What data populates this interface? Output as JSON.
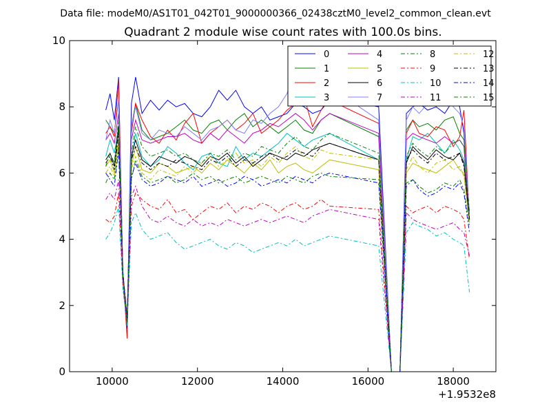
{
  "chart_data": {
    "type": "line",
    "suptitle": "Data file: modeM0/AS1T01_042T01_9000000366_02438cztM0_level2_common_clean.evt",
    "title": "Quadrant 2 module wise count rates with 100.0s bins.",
    "xlabel": "",
    "ylabel": "",
    "xlim": [
      9000,
      19000
    ],
    "ylim": [
      0,
      10
    ],
    "x_offset_label": "+1.9532e8",
    "xticks": [
      10000,
      12000,
      14000,
      16000,
      18000
    ],
    "yticks": [
      0,
      2,
      4,
      6,
      8,
      10
    ],
    "xtick_labels": [
      "10000",
      "12000",
      "14000",
      "16000",
      "18000"
    ],
    "ytick_labels": [
      "0",
      "2",
      "4",
      "6",
      "8",
      "10"
    ],
    "grid": false,
    "legend_position": "top-right",
    "legend_columns": 4,
    "series": [
      {
        "name": "0",
        "color": "#0000ff",
        "dash": "solid",
        "values": [
          7.9,
          8.4,
          7.6,
          8.9,
          3.0,
          1.3,
          8.1,
          8.9,
          7.8,
          8.2,
          7.9,
          8.2,
          8.0,
          8.1,
          7.8,
          7.7,
          8.0,
          8.5,
          8.2,
          8.5,
          8.0,
          7.8,
          8.0,
          7.6,
          7.7,
          7.8,
          8.1,
          8.0,
          7.8,
          7.9,
          8.3,
          8.0,
          0.0,
          0.0,
          7.8,
          8.0,
          8.1,
          7.9,
          8.0,
          7.8,
          8.2,
          8.0,
          7.2,
          4.6
        ]
      },
      {
        "name": "1",
        "color": "#008000",
        "dash": "solid",
        "values": [
          7.6,
          7.4,
          7.2,
          8.2,
          3.0,
          1.5,
          7.4,
          8.1,
          7.3,
          7.0,
          7.1,
          7.2,
          7.4,
          7.6,
          7.3,
          7.2,
          7.5,
          7.6,
          7.3,
          7.6,
          7.8,
          7.4,
          7.6,
          7.4,
          7.2,
          7.4,
          7.6,
          7.3,
          7.2,
          7.6,
          7.8,
          7.1,
          0.0,
          0.0,
          7.3,
          7.6,
          7.4,
          7.5,
          7.3,
          7.6,
          7.7,
          7.2,
          7.0,
          4.8
        ]
      },
      {
        "name": "2",
        "color": "#ff0000",
        "dash": "solid",
        "values": [
          7.2,
          7.4,
          7.1,
          8.8,
          3.0,
          1.0,
          7.2,
          8.1,
          7.6,
          7.1,
          6.9,
          7.3,
          7.0,
          7.5,
          7.8,
          6.9,
          7.2,
          7.4,
          7.6,
          7.3,
          7.5,
          7.8,
          7.2,
          7.4,
          7.6,
          7.9,
          8.1,
          8.3,
          7.4,
          7.9,
          8.2,
          7.5,
          0.0,
          0.0,
          7.2,
          7.6,
          7.2,
          7.1,
          7.4,
          7.3,
          6.8,
          7.1,
          7.9,
          4.6
        ]
      },
      {
        "name": "3",
        "color": "#00bfbf",
        "dash": "solid",
        "values": [
          6.5,
          7.0,
          6.6,
          7.4,
          3.0,
          1.4,
          6.4,
          7.2,
          6.5,
          6.2,
          6.4,
          6.8,
          6.6,
          6.3,
          6.1,
          6.5,
          6.6,
          6.3,
          6.2,
          6.8,
          6.4,
          6.6,
          6.5,
          6.7,
          6.9,
          7.2,
          7.0,
          6.8,
          7.0,
          7.1,
          7.2,
          6.4,
          0.0,
          0.0,
          6.4,
          7.1,
          7.0,
          7.2,
          6.9,
          6.6,
          7.0,
          6.7,
          6.4,
          4.5
        ]
      },
      {
        "name": "4",
        "color": "#bf00bf",
        "dash": "solid",
        "values": [
          7.0,
          7.2,
          6.9,
          7.8,
          3.0,
          1.6,
          7.0,
          7.6,
          7.0,
          6.9,
          7.0,
          7.1,
          7.1,
          7.2,
          7.0,
          6.9,
          7.2,
          7.0,
          7.3,
          7.1,
          6.9,
          7.2,
          7.3,
          7.5,
          7.4,
          7.6,
          7.8,
          7.6,
          7.3,
          7.6,
          7.8,
          7.2,
          0.0,
          0.0,
          7.0,
          7.2,
          7.1,
          7.0,
          6.9,
          7.1,
          6.9,
          7.0,
          6.8,
          4.6
        ]
      },
      {
        "name": "5",
        "color": "#bfbf00",
        "dash": "solid",
        "values": [
          6.2,
          6.4,
          6.0,
          7.0,
          3.0,
          1.5,
          6.2,
          6.8,
          6.1,
          6.0,
          6.3,
          6.2,
          6.0,
          6.1,
          6.2,
          6.0,
          6.3,
          6.1,
          6.4,
          6.2,
          6.0,
          6.3,
          6.1,
          6.4,
          6.0,
          6.2,
          6.3,
          6.1,
          6.0,
          6.2,
          6.4,
          6.1,
          0.0,
          0.0,
          6.0,
          6.3,
          6.2,
          6.1,
          6.0,
          6.2,
          6.4,
          6.1,
          6.0,
          4.5
        ]
      },
      {
        "name": "6",
        "color": "#000000",
        "dash": "solid",
        "values": [
          6.4,
          6.6,
          6.2,
          7.4,
          3.0,
          1.6,
          6.5,
          7.0,
          6.4,
          6.2,
          6.5,
          6.4,
          6.3,
          6.5,
          6.4,
          6.2,
          6.5,
          6.4,
          6.6,
          6.3,
          6.5,
          6.2,
          6.4,
          6.6,
          6.5,
          6.4,
          6.6,
          6.5,
          6.7,
          6.8,
          6.9,
          6.4,
          0.0,
          0.0,
          6.3,
          6.8,
          6.6,
          6.4,
          6.7,
          6.5,
          6.4,
          6.6,
          6.3,
          4.6
        ]
      },
      {
        "name": "7",
        "color": "#7f7fff",
        "dash": "solid",
        "values": [
          7.0,
          7.6,
          7.2,
          8.2,
          3.0,
          1.5,
          7.4,
          8.0,
          7.2,
          7.0,
          7.3,
          7.2,
          7.1,
          7.4,
          7.2,
          7.0,
          7.3,
          7.4,
          7.6,
          7.3,
          7.2,
          7.6,
          7.5,
          7.8,
          8.0,
          8.4,
          9.2,
          8.6,
          8.2,
          8.4,
          8.6,
          7.6,
          0.0,
          0.0,
          7.6,
          8.0,
          7.8,
          8.1,
          8.2,
          8.6,
          8.0,
          7.8,
          7.4,
          4.7
        ]
      },
      {
        "name": "8",
        "color": "#008000",
        "dash": "dashdot",
        "values": [
          5.7,
          6.0,
          5.8,
          6.8,
          2.8,
          1.5,
          5.8,
          6.4,
          5.9,
          5.7,
          5.8,
          5.9,
          5.7,
          5.8,
          6.0,
          5.8,
          5.9,
          5.7,
          5.8,
          5.9,
          5.7,
          5.8,
          5.9,
          5.8,
          5.7,
          5.9,
          5.8,
          5.7,
          5.9,
          6.0,
          5.9,
          5.8,
          0.0,
          0.0,
          5.7,
          5.8,
          5.6,
          5.4,
          5.5,
          5.7,
          5.6,
          5.8,
          5.5,
          4.4
        ]
      },
      {
        "name": "9",
        "color": "#ff0000",
        "dash": "dashdot",
        "values": [
          4.6,
          4.5,
          4.7,
          5.4,
          2.6,
          1.4,
          5.0,
          5.4,
          5.2,
          5.0,
          4.9,
          5.2,
          4.8,
          4.9,
          4.6,
          4.8,
          5.0,
          4.9,
          5.1,
          4.8,
          5.0,
          4.9,
          5.1,
          5.0,
          4.8,
          5.0,
          5.1,
          4.9,
          5.0,
          5.2,
          5.0,
          4.9,
          0.0,
          0.0,
          5.0,
          4.8,
          4.9,
          5.0,
          4.8,
          5.0,
          4.9,
          4.8,
          4.6,
          3.4
        ]
      },
      {
        "name": "10",
        "color": "#00bfbf",
        "dash": "dashdot",
        "values": [
          4.0,
          4.2,
          4.5,
          5.0,
          2.5,
          1.4,
          4.5,
          4.8,
          4.3,
          4.0,
          4.1,
          4.2,
          3.9,
          3.7,
          3.8,
          3.9,
          4.0,
          3.8,
          3.7,
          3.9,
          3.8,
          3.6,
          3.7,
          3.8,
          3.9,
          3.8,
          4.0,
          3.8,
          3.9,
          4.0,
          4.1,
          3.8,
          0.0,
          0.0,
          4.2,
          4.5,
          4.4,
          4.3,
          4.1,
          4.2,
          4.0,
          3.9,
          3.8,
          2.4
        ]
      },
      {
        "name": "11",
        "color": "#bf00bf",
        "dash": "dashdot",
        "values": [
          5.2,
          5.4,
          5.2,
          5.8,
          2.8,
          1.5,
          5.3,
          5.6,
          5.0,
          4.6,
          4.5,
          4.7,
          4.5,
          4.4,
          4.6,
          4.4,
          4.5,
          4.4,
          4.6,
          4.5,
          4.4,
          4.5,
          4.6,
          4.5,
          4.6,
          4.7,
          4.6,
          4.5,
          4.7,
          4.8,
          4.9,
          4.6,
          0.0,
          0.0,
          4.8,
          4.6,
          4.5,
          4.4,
          4.3,
          4.4,
          4.5,
          4.3,
          4.2,
          3.5
        ]
      },
      {
        "name": "12",
        "color": "#bfbf00",
        "dash": "dashdot",
        "values": [
          6.0,
          6.2,
          5.9,
          6.9,
          2.9,
          1.5,
          6.1,
          6.5,
          6.0,
          5.8,
          6.1,
          6.0,
          5.9,
          6.2,
          6.0,
          6.3,
          6.5,
          6.2,
          6.4,
          6.6,
          6.3,
          6.4,
          6.2,
          6.5,
          6.3,
          6.6,
          6.8,
          6.5,
          6.4,
          6.7,
          6.6,
          6.4,
          0.0,
          0.0,
          6.1,
          6.5,
          6.2,
          6.0,
          6.3,
          6.4,
          6.1,
          6.2,
          5.9,
          4.5
        ]
      },
      {
        "name": "13",
        "color": "#000000",
        "dash": "dashdot",
        "values": [
          6.3,
          6.5,
          6.1,
          7.2,
          3.0,
          1.6,
          6.4,
          6.8,
          6.3,
          6.1,
          6.3,
          6.2,
          6.4,
          6.3,
          6.2,
          6.1,
          6.4,
          6.3,
          6.5,
          6.2,
          6.4,
          6.3,
          6.5,
          6.6,
          6.4,
          6.5,
          6.7,
          6.6,
          6.5,
          6.8,
          6.9,
          6.4,
          0.0,
          0.0,
          6.4,
          6.7,
          6.5,
          6.3,
          6.6,
          6.4,
          6.5,
          6.6,
          6.2,
          4.6
        ]
      },
      {
        "name": "14",
        "color": "#0000ff",
        "dash": "dashdot",
        "values": [
          6.0,
          5.8,
          5.6,
          6.7,
          2.9,
          1.5,
          5.9,
          6.3,
          5.8,
          5.6,
          5.7,
          5.9,
          5.8,
          5.7,
          5.9,
          5.6,
          5.7,
          5.8,
          5.6,
          5.7,
          5.9,
          5.8,
          5.6,
          5.7,
          5.8,
          5.7,
          5.9,
          5.8,
          5.7,
          5.9,
          6.0,
          5.7,
          0.0,
          0.0,
          5.6,
          5.8,
          5.5,
          5.3,
          5.4,
          5.6,
          5.5,
          5.7,
          5.4,
          4.2
        ]
      },
      {
        "name": "15",
        "color": "#008000",
        "dash": "dashdot",
        "values": [
          6.2,
          6.6,
          6.3,
          7.6,
          2.9,
          1.5,
          6.6,
          7.4,
          6.8,
          6.5,
          6.6,
          6.7,
          6.5,
          6.6,
          6.4,
          6.3,
          6.6,
          6.5,
          6.7,
          6.4,
          6.6,
          6.5,
          6.8,
          6.7,
          6.6,
          6.9,
          7.1,
          6.8,
          6.7,
          7.0,
          7.2,
          6.6,
          0.0,
          0.0,
          6.5,
          6.9,
          6.7,
          6.5,
          6.8,
          6.6,
          6.9,
          7.0,
          6.8,
          4.8
        ]
      }
    ],
    "x": [
      9850,
      9950,
      10050,
      10150,
      10250,
      10350,
      10450,
      10550,
      10700,
      10900,
      11100,
      11300,
      11500,
      11700,
      11900,
      12100,
      12300,
      12500,
      12700,
      12900,
      13100,
      13300,
      13500,
      13700,
      13900,
      14100,
      14300,
      14500,
      14700,
      14900,
      15100,
      16250,
      16550,
      16750,
      16900,
      17050,
      17200,
      17400,
      17600,
      17800,
      18000,
      18150,
      18250,
      18380
    ]
  }
}
